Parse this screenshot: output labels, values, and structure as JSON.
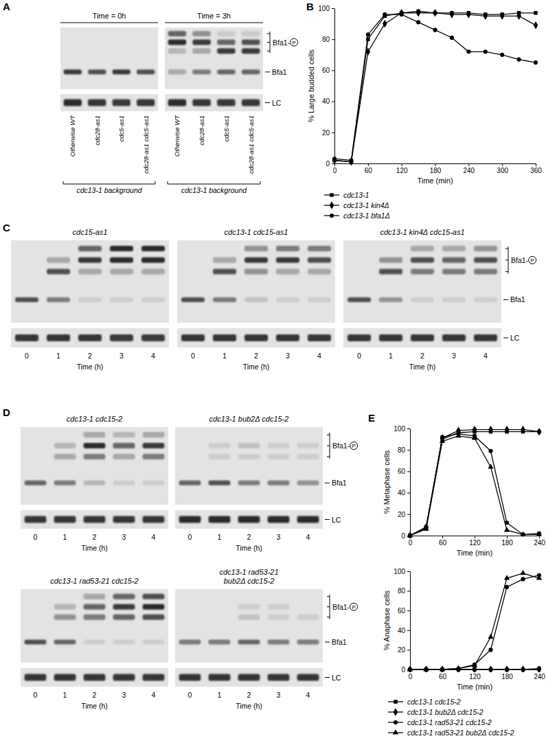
{
  "figure": {
    "panel_labels": [
      "A",
      "B",
      "C",
      "D",
      "E"
    ]
  },
  "blots": {
    "A": {
      "rows": [
        [
          {
            "title": [
              "Time = 0h"
            ],
            "caption": "cdc13-1 background",
            "lanes": [
              {
                "label": "Otherwise WT",
                "bfa1": 0.8,
                "bfa1_p": [
                  0,
                  0,
                  0
                ],
                "lc": 0.9
              },
              {
                "label": "cdc28-as1",
                "bfa1": 0.7,
                "bfa1_p": [
                  0,
                  0,
                  0
                ],
                "lc": 0.85
              },
              {
                "label": "cdc5-as1",
                "bfa1": 0.8,
                "bfa1_p": [
                  0,
                  0,
                  0
                ],
                "lc": 0.8
              },
              {
                "label": "cdc28-as1 cdc5-as1",
                "bfa1": 0.7,
                "bfa1_p": [
                  0,
                  0,
                  0
                ],
                "lc": 0.85
              }
            ]
          },
          {
            "title": [
              "Time = 3h"
            ],
            "caption": "cdc13-1 background",
            "lanes": [
              {
                "label": "Otherwise WT",
                "bfa1": 0.3,
                "bfa1_p": [
                  0.2,
                  0.9,
                  0.6
                ],
                "lc": 0.9
              },
              {
                "label": "cdc28-as1",
                "bfa1": 0.5,
                "bfa1_p": [
                  0.3,
                  0.8,
                  0.4
                ],
                "lc": 0.85
              },
              {
                "label": "cdc5-as1",
                "bfa1": 0.6,
                "bfa1_p": [
                  0.8,
                  0.6,
                  0.1
                ],
                "lc": 0.85
              },
              {
                "label": "cdc28-as1 cdc5-as1",
                "bfa1": 0.6,
                "bfa1_p": [
                  0.8,
                  0.7,
                  0.1
                ],
                "lc": 0.85
              }
            ]
          }
        ]
      ],
      "markers": {
        "phospho": {
          "text": "Bfa1-",
          "circled": "P"
        },
        "unphos": "Bfa1",
        "loading": "LC"
      }
    },
    "C": {
      "x_label": "Time (h)",
      "rows": [
        [
          {
            "title": [
              "cdc15-as1"
            ],
            "lanes": [
              {
                "label": 0,
                "bfa1": 0.7,
                "bfa1_p": [
                  0,
                  0,
                  0
                ],
                "lc": 0.85
              },
              {
                "label": 1,
                "bfa1": 0.5,
                "bfa1_p": [
                  0.7,
                  0.3,
                  0
                ],
                "lc": 0.85
              },
              {
                "label": 2,
                "bfa1": 0.1,
                "bfa1_p": [
                  0.3,
                  0.8,
                  0.6
                ],
                "lc": 0.85
              },
              {
                "label": 3,
                "bfa1": 0.1,
                "bfa1_p": [
                  0.3,
                  0.9,
                  0.9
                ],
                "lc": 0.8
              },
              {
                "label": 4,
                "bfa1": 0.1,
                "bfa1_p": [
                  0.3,
                  0.9,
                  0.9
                ],
                "lc": 0.8
              }
            ]
          },
          {
            "title": [
              "cdc13-1 cdc15-as1"
            ],
            "lanes": [
              {
                "label": 0,
                "bfa1": 0.7,
                "bfa1_p": [
                  0,
                  0,
                  0
                ],
                "lc": 0.85
              },
              {
                "label": 1,
                "bfa1": 0.5,
                "bfa1_p": [
                  0.7,
                  0.3,
                  0
                ],
                "lc": 0.85
              },
              {
                "label": 2,
                "bfa1": 0.15,
                "bfa1_p": [
                  0.4,
                  0.8,
                  0.4
                ],
                "lc": 0.85
              },
              {
                "label": 3,
                "bfa1": 0.1,
                "bfa1_p": [
                  0.3,
                  0.8,
                  0.5
                ],
                "lc": 0.85
              },
              {
                "label": 4,
                "bfa1": 0.1,
                "bfa1_p": [
                  0.3,
                  0.7,
                  0.5
                ],
                "lc": 0.85
              }
            ]
          },
          {
            "title": [
              "cdc13-1 kin4Δ cdc15-as1"
            ],
            "lanes": [
              {
                "label": 0,
                "bfa1": 0.7,
                "bfa1_p": [
                  0,
                  0,
                  0
                ],
                "lc": 0.85
              },
              {
                "label": 1,
                "bfa1": 0.4,
                "bfa1_p": [
                  0.7,
                  0.4,
                  0
                ],
                "lc": 0.85
              },
              {
                "label": 2,
                "bfa1": 0.1,
                "bfa1_p": [
                  0.5,
                  0.7,
                  0.3
                ],
                "lc": 0.85
              },
              {
                "label": 3,
                "bfa1": 0.1,
                "bfa1_p": [
                  0.5,
                  0.6,
                  0.3
                ],
                "lc": 0.85
              },
              {
                "label": 4,
                "bfa1": 0.1,
                "bfa1_p": [
                  0.5,
                  0.7,
                  0.4
                ],
                "lc": 0.85
              }
            ]
          }
        ]
      ],
      "markers": {
        "phospho": {
          "text": "Bfa1-",
          "circled": "P"
        },
        "unphos": "Bfa1",
        "loading": "LC"
      }
    },
    "D": {
      "x_label": "Time (h)",
      "rows": [
        [
          {
            "title": [
              "cdc13-1 cdc15-2"
            ],
            "lanes": [
              {
                "label": 0,
                "bfa1": 0.6,
                "bfa1_p": [
                  0,
                  0,
                  0
                ],
                "lc": 0.85
              },
              {
                "label": 1,
                "bfa1": 0.5,
                "bfa1_p": [
                  0.3,
                  0.2,
                  0
                ],
                "lc": 0.85
              },
              {
                "label": 2,
                "bfa1": 0.2,
                "bfa1_p": [
                  0.5,
                  0.9,
                  0.3
                ],
                "lc": 0.85
              },
              {
                "label": 3,
                "bfa1": 0.1,
                "bfa1_p": [
                  0.3,
                  0.6,
                  0.2
                ],
                "lc": 0.85
              },
              {
                "label": 4,
                "bfa1": 0.1,
                "bfa1_p": [
                  0.5,
                  0.8,
                  0.3
                ],
                "lc": 0.85
              }
            ]
          },
          {
            "title": [
              "cdc13-1 bub2Δ cdc15-2"
            ],
            "lanes": [
              {
                "label": 0,
                "bfa1": 0.6,
                "bfa1_p": [
                  0,
                  0,
                  0
                ],
                "lc": 0.9
              },
              {
                "label": 1,
                "bfa1": 0.7,
                "bfa1_p": [
                  0.1,
                  0.1,
                  0
                ],
                "lc": 0.9
              },
              {
                "label": 2,
                "bfa1": 0.5,
                "bfa1_p": [
                  0.1,
                  0.15,
                  0
                ],
                "lc": 0.9
              },
              {
                "label": 3,
                "bfa1": 0.5,
                "bfa1_p": [
                  0.1,
                  0.1,
                  0
                ],
                "lc": 0.9
              },
              {
                "label": 4,
                "bfa1": 0.4,
                "bfa1_p": [
                  0.1,
                  0.1,
                  0
                ],
                "lc": 0.9
              }
            ]
          }
        ],
        [
          {
            "title": [
              "cdc13-1 rad53-21 cdc15-2"
            ],
            "lanes": [
              {
                "label": 0,
                "bfa1": 0.7,
                "bfa1_p": [
                  0,
                  0,
                  0
                ],
                "lc": 0.85
              },
              {
                "label": 1,
                "bfa1": 0.6,
                "bfa1_p": [
                  0.4,
                  0.2,
                  0
                ],
                "lc": 0.85
              },
              {
                "label": 2,
                "bfa1": 0.1,
                "bfa1_p": [
                  0.5,
                  0.6,
                  0.3
                ],
                "lc": 0.85
              },
              {
                "label": 3,
                "bfa1": 0.1,
                "bfa1_p": [
                  0.6,
                  0.8,
                  0.6
                ],
                "lc": 0.85
              },
              {
                "label": 4,
                "bfa1": 0.1,
                "bfa1_p": [
                  0.7,
                  0.9,
                  0.7
                ],
                "lc": 0.85
              }
            ]
          },
          {
            "title": [
              "cdc13-1 rad53-21",
              "bub2Δ cdc15-2"
            ],
            "lanes": [
              {
                "label": 0,
                "bfa1": 0.5,
                "bfa1_p": [
                  0,
                  0,
                  0
                ],
                "lc": 0.85
              },
              {
                "label": 1,
                "bfa1": 0.5,
                "bfa1_p": [
                  0,
                  0,
                  0
                ],
                "lc": 0.85
              },
              {
                "label": 2,
                "bfa1": 0.6,
                "bfa1_p": [
                  0.15,
                  0.1,
                  0
                ],
                "lc": 0.85
              },
              {
                "label": 3,
                "bfa1": 0.5,
                "bfa1_p": [
                  0.1,
                  0.1,
                  0
                ],
                "lc": 0.85
              },
              {
                "label": 4,
                "bfa1": 0.5,
                "bfa1_p": [
                  0.1,
                  0,
                  0
                ],
                "lc": 0.85
              }
            ]
          }
        ]
      ],
      "markers": {
        "phospho": {
          "text": "Bfa1-",
          "circled": "P"
        },
        "unphos": "Bfa1",
        "loading": "LC"
      }
    }
  },
  "chart_data": [
    {
      "type": "line",
      "x_label": "Time (min)",
      "y_label": "% Large budded cells",
      "x": [
        0,
        30,
        60,
        90,
        120,
        150,
        180,
        210,
        240,
        270,
        300,
        330,
        360
      ],
      "xlim": [
        0,
        360
      ],
      "xticks": [
        0,
        60,
        120,
        180,
        240,
        300,
        360
      ],
      "ylim": [
        0,
        100
      ],
      "yticks": [
        0,
        20,
        40,
        60,
        80,
        100
      ],
      "grid": false,
      "legend": "bottom",
      "series": [
        {
          "name": "cdc13-1",
          "color": "#000000",
          "marker": "square",
          "values": [
            2,
            1,
            80,
            95,
            97,
            98,
            97,
            97,
            97,
            96,
            96,
            97,
            97
          ]
        },
        {
          "name": "cdc13-1 kin4Δ",
          "color": "#000000",
          "marker": "diamond",
          "values": [
            2,
            1,
            72,
            90,
            97,
            97,
            97,
            96,
            96,
            95,
            95,
            95,
            89
          ]
        },
        {
          "name": "cdc13-1 bfa1Δ",
          "color": "#000000",
          "marker": "circle",
          "values": [
            3,
            2,
            83,
            96,
            96,
            91,
            86,
            81,
            72,
            72,
            70,
            67,
            65
          ]
        }
      ]
    },
    {
      "type": "line",
      "x_label": "Time (min)",
      "y_label": "% Metaphase cells",
      "x": [
        0,
        30,
        60,
        90,
        120,
        150,
        180,
        210,
        240
      ],
      "xlim": [
        0,
        240
      ],
      "xticks": [
        0,
        60,
        120,
        180,
        240
      ],
      "ylim": [
        0,
        100
      ],
      "yticks": [
        0,
        20,
        40,
        60,
        80,
        100
      ],
      "grid": false,
      "series": [
        {
          "color": "#000000",
          "marker": "square",
          "values": [
            0,
            8,
            90,
            96,
            97,
            97,
            97,
            97,
            97
          ]
        },
        {
          "color": "#000000",
          "marker": "diamond",
          "values": [
            0,
            8,
            91,
            98,
            99,
            99,
            99,
            99,
            97
          ]
        },
        {
          "color": "#000000",
          "marker": "circle",
          "values": [
            0,
            7,
            92,
            95,
            93,
            79,
            12,
            1,
            2
          ]
        },
        {
          "color": "#000000",
          "marker": "triangle",
          "values": [
            0,
            6,
            88,
            93,
            91,
            64,
            5,
            1,
            1
          ]
        }
      ]
    },
    {
      "type": "line",
      "x_label": "Time (min)",
      "y_label": "% Anaphase cells",
      "x": [
        0,
        30,
        60,
        90,
        120,
        150,
        180,
        210,
        240
      ],
      "xlim": [
        0,
        240
      ],
      "xticks": [
        0,
        60,
        120,
        180,
        240
      ],
      "ylim": [
        0,
        100
      ],
      "yticks": [
        0,
        20,
        40,
        60,
        80,
        100
      ],
      "grid": false,
      "legend": "bottom",
      "series": [
        {
          "name": "cdc13-1 cdc15-2",
          "color": "#000000",
          "marker": "square",
          "values": [
            0,
            0,
            0,
            0,
            0,
            0,
            0,
            0,
            1
          ]
        },
        {
          "name": "cdc13-1 bub2Δ cdc15-2",
          "color": "#000000",
          "marker": "diamond",
          "values": [
            0,
            0,
            0,
            0,
            0,
            0,
            0,
            0,
            0
          ]
        },
        {
          "name": "cdc13-1 rad53-21 cdc15-2",
          "color": "#000000",
          "marker": "circle",
          "values": [
            0,
            0,
            0,
            1,
            5,
            20,
            84,
            92,
            96
          ]
        },
        {
          "name": "cdc13-1 rad53-21 bub2Δ cdc15-2",
          "color": "#000000",
          "marker": "triangle",
          "values": [
            0,
            0,
            0,
            1,
            4,
            33,
            93,
            98,
            93
          ]
        }
      ]
    }
  ]
}
